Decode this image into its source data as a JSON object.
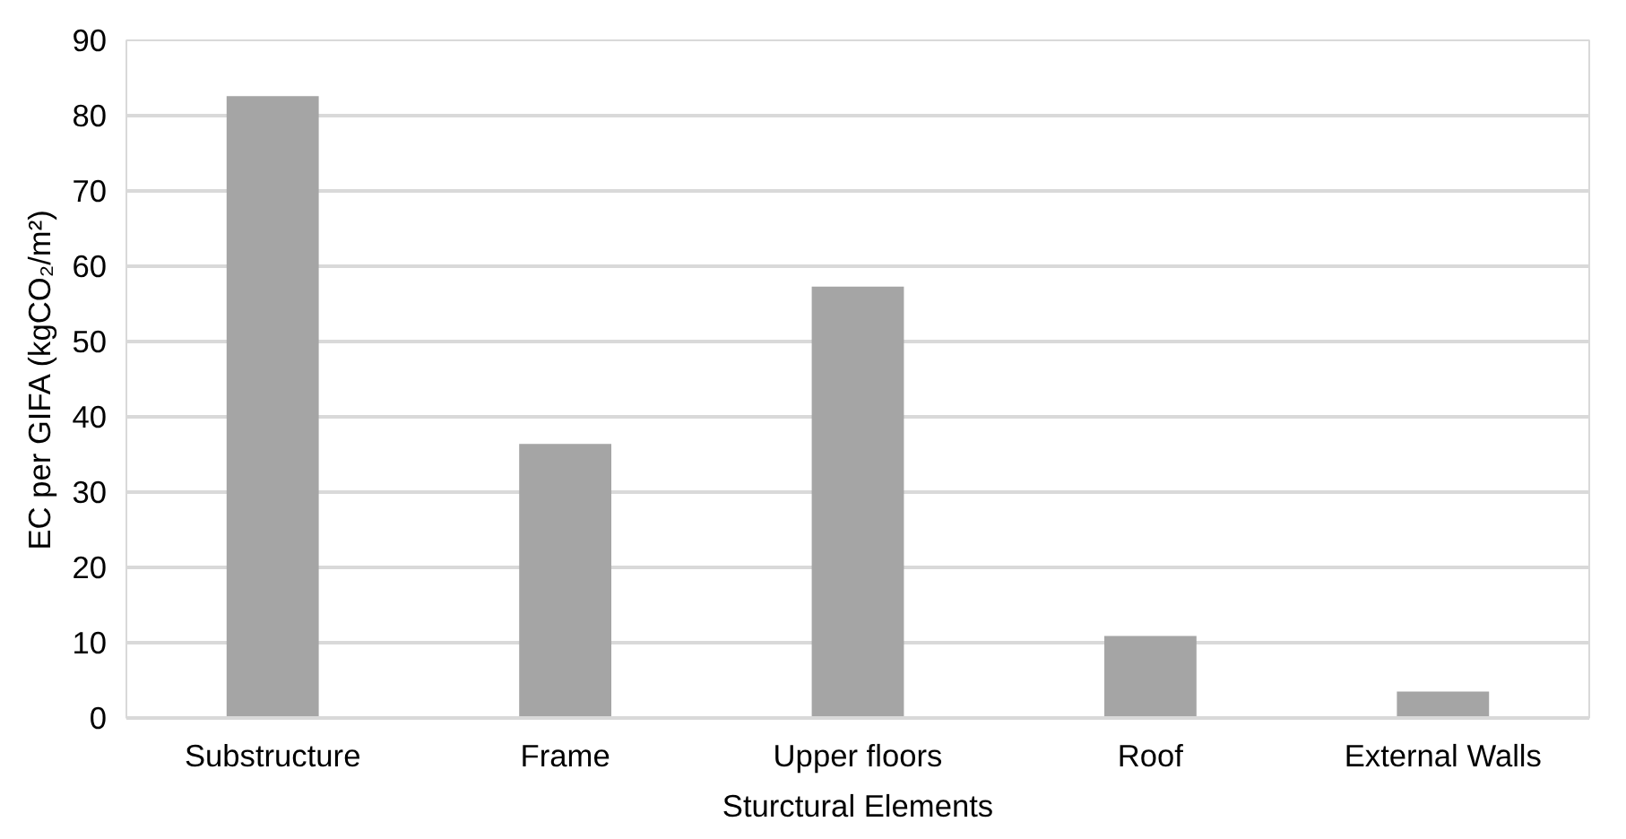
{
  "chart_data": {
    "type": "bar",
    "xlabel": "Sturctural Elements",
    "ylabel": "EC per GIFA (kgCO₂/m²)",
    "categories": [
      "Substructure",
      "Frame",
      "Upper floors",
      "Roof",
      "External Walls"
    ],
    "values": [
      82.6,
      36.4,
      57.3,
      10.9,
      3.5
    ],
    "color": "#a5a5a5",
    "ylim": [
      0,
      90
    ],
    "yticks": [
      0,
      10,
      20,
      30,
      40,
      50,
      60,
      70,
      80,
      90
    ],
    "grid": "y"
  }
}
